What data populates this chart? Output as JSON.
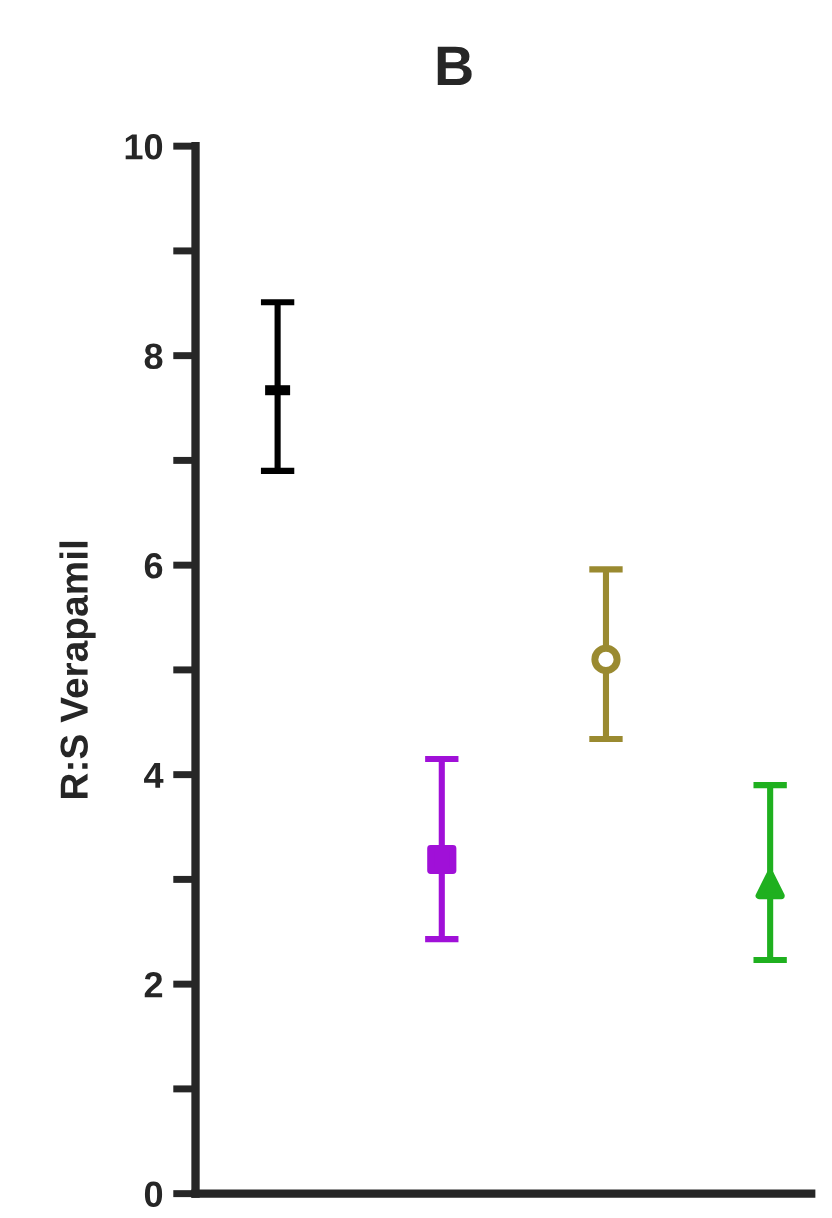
{
  "chart_data": {
    "type": "scatter",
    "title": "B",
    "ylabel": "R:S Verapamil",
    "categories": [
      null,
      null,
      null,
      null
    ],
    "series": [
      {
        "color": "#000000",
        "values": [
          7.67,
          null,
          null,
          null
        ],
        "errors": [
          [
            6.9,
            8.51
          ],
          null,
          null,
          null
        ]
      },
      {
        "color": "#a010d8",
        "marker": "square",
        "values": [
          null,
          3.19,
          null,
          null
        ],
        "errors": [
          null,
          [
            2.43,
            4.15
          ],
          null,
          null
        ]
      },
      {
        "color": "#9a8a30",
        "marker": "circle",
        "values": [
          null,
          null,
          5.1,
          null
        ],
        "errors": [
          null,
          null,
          [
            4.34,
            5.96
          ],
          null
        ]
      },
      {
        "color": "#1fb01f",
        "marker": "triangle",
        "values": [
          null,
          null,
          null,
          2.95
        ],
        "errors": [
          null,
          null,
          null,
          [
            2.23,
            3.9
          ]
        ]
      }
    ],
    "ylim": [
      0,
      10
    ],
    "yticks": [
      0,
      {
        "value": 1,
        "label": null
      },
      2,
      {
        "value": 3,
        "label": null
      },
      4,
      {
        "value": 5,
        "label": null
      },
      6,
      {
        "value": 7,
        "label": null
      },
      8,
      {
        "value": 9,
        "label": null
      },
      10
    ],
    "grid": false,
    "legend": false,
    "tick_labels": "y"
  }
}
